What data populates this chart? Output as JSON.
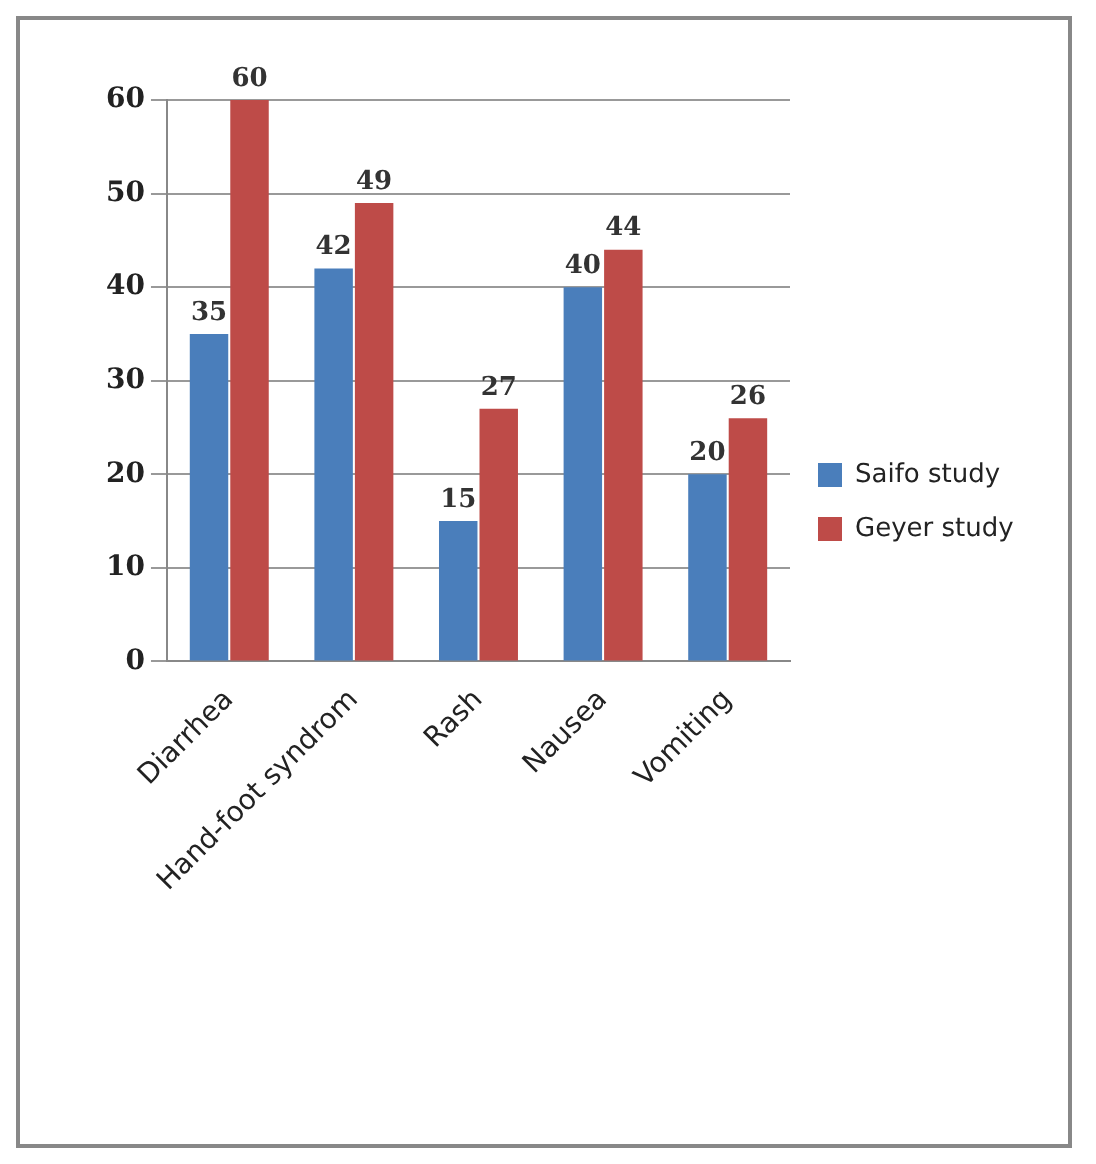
{
  "chart_data": {
    "type": "bar",
    "categories": [
      "Diarrhea",
      "Hand-foot syndrom",
      "Rash",
      "Nausea",
      "Vomiting"
    ],
    "series": [
      {
        "name": "Saifo study",
        "color": "#4a7ebb",
        "values": [
          35,
          42,
          15,
          40,
          20
        ]
      },
      {
        "name": "Geyer study",
        "color": "#be4b48",
        "values": [
          60,
          49,
          27,
          44,
          26
        ]
      }
    ],
    "ylim": [
      0,
      60
    ],
    "yticks": [
      0,
      10,
      20,
      30,
      40,
      50,
      60
    ],
    "grid": "y",
    "legend": "right",
    "data_labels": true
  }
}
